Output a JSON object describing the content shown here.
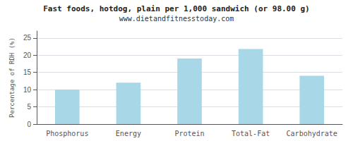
{
  "chart_data": {
    "type": "bar",
    "title": "Fast foods, hotdog, plain per 1,000 sandwich (or 98.00 g)",
    "subtitle": "www.dietandfitnesstoday.com",
    "categories": [
      "Phosphorus",
      "Energy",
      "Protein",
      "Total-Fat",
      "Carbohydrate"
    ],
    "values": [
      10.0,
      12.0,
      19.0,
      21.8,
      14.0
    ],
    "color": "#a8d8e8",
    "ylabel": "Percentage of RDH (%)",
    "ylim": [
      0,
      27
    ],
    "yticks": [
      0,
      5,
      10,
      15,
      20,
      25
    ],
    "grid": true
  }
}
